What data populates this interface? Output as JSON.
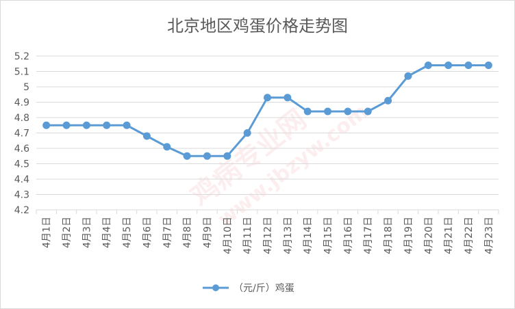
{
  "chart_data": {
    "type": "line",
    "title": "北京地区鸡蛋价格走势图",
    "xlabel": "",
    "ylabel": "",
    "categories": [
      "4月1日",
      "4月2日",
      "4月3日",
      "4月4日",
      "4月5日",
      "4月6日",
      "4月7日",
      "4月8日",
      "4月9日",
      "4月10日",
      "4月11日",
      "4月12日",
      "4月13日",
      "4月14日",
      "4月15日",
      "4月16日",
      "4月17日",
      "4月18日",
      "4月19日",
      "4月20日",
      "4月21日",
      "4月22日",
      "4月23日"
    ],
    "series": [
      {
        "name": "（元/斤）鸡蛋",
        "values": [
          4.75,
          4.75,
          4.75,
          4.75,
          4.75,
          4.68,
          4.61,
          4.55,
          4.55,
          4.55,
          4.7,
          4.93,
          4.93,
          4.84,
          4.84,
          4.84,
          4.84,
          4.91,
          5.07,
          5.14,
          5.14,
          5.14,
          5.14
        ]
      }
    ],
    "yticks": [
      "4.2",
      "4.3",
      "4.4",
      "4.5",
      "4.6",
      "4.7",
      "4.8",
      "4.9",
      "5",
      "5.1",
      "5.2"
    ],
    "ylim": [
      4.2,
      5.2
    ],
    "grid": true,
    "legend": "bottom",
    "line_color": "#5b9bd5",
    "watermark": [
      "鸡病专业网",
      "www.jbzyw.com"
    ]
  }
}
